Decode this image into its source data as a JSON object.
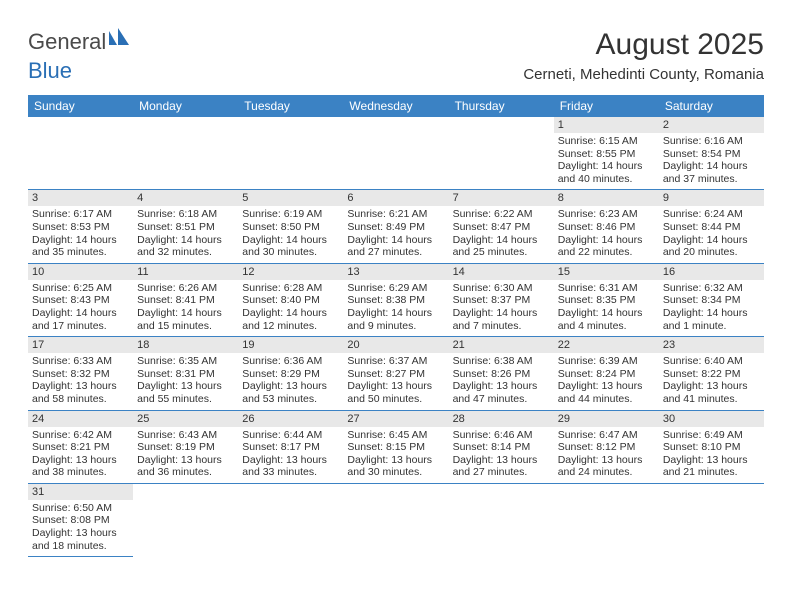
{
  "logo": {
    "text1": "General",
    "text2": "Blue"
  },
  "title": "August 2025",
  "location": "Cerneti, Mehedinti County, Romania",
  "colors": {
    "header_bg": "#3b82c4",
    "header_text": "#ffffff",
    "daynum_bg": "#e8e8e8",
    "row_border": "#3b82c4",
    "logo_blue": "#2a6fb5"
  },
  "weekdays": [
    "Sunday",
    "Monday",
    "Tuesday",
    "Wednesday",
    "Thursday",
    "Friday",
    "Saturday"
  ],
  "weeks": [
    [
      null,
      null,
      null,
      null,
      null,
      {
        "n": "1",
        "sr": "Sunrise: 6:15 AM",
        "ss": "Sunset: 8:55 PM",
        "dl": "Daylight: 14 hours and 40 minutes."
      },
      {
        "n": "2",
        "sr": "Sunrise: 6:16 AM",
        "ss": "Sunset: 8:54 PM",
        "dl": "Daylight: 14 hours and 37 minutes."
      }
    ],
    [
      {
        "n": "3",
        "sr": "Sunrise: 6:17 AM",
        "ss": "Sunset: 8:53 PM",
        "dl": "Daylight: 14 hours and 35 minutes."
      },
      {
        "n": "4",
        "sr": "Sunrise: 6:18 AM",
        "ss": "Sunset: 8:51 PM",
        "dl": "Daylight: 14 hours and 32 minutes."
      },
      {
        "n": "5",
        "sr": "Sunrise: 6:19 AM",
        "ss": "Sunset: 8:50 PM",
        "dl": "Daylight: 14 hours and 30 minutes."
      },
      {
        "n": "6",
        "sr": "Sunrise: 6:21 AM",
        "ss": "Sunset: 8:49 PM",
        "dl": "Daylight: 14 hours and 27 minutes."
      },
      {
        "n": "7",
        "sr": "Sunrise: 6:22 AM",
        "ss": "Sunset: 8:47 PM",
        "dl": "Daylight: 14 hours and 25 minutes."
      },
      {
        "n": "8",
        "sr": "Sunrise: 6:23 AM",
        "ss": "Sunset: 8:46 PM",
        "dl": "Daylight: 14 hours and 22 minutes."
      },
      {
        "n": "9",
        "sr": "Sunrise: 6:24 AM",
        "ss": "Sunset: 8:44 PM",
        "dl": "Daylight: 14 hours and 20 minutes."
      }
    ],
    [
      {
        "n": "10",
        "sr": "Sunrise: 6:25 AM",
        "ss": "Sunset: 8:43 PM",
        "dl": "Daylight: 14 hours and 17 minutes."
      },
      {
        "n": "11",
        "sr": "Sunrise: 6:26 AM",
        "ss": "Sunset: 8:41 PM",
        "dl": "Daylight: 14 hours and 15 minutes."
      },
      {
        "n": "12",
        "sr": "Sunrise: 6:28 AM",
        "ss": "Sunset: 8:40 PM",
        "dl": "Daylight: 14 hours and 12 minutes."
      },
      {
        "n": "13",
        "sr": "Sunrise: 6:29 AM",
        "ss": "Sunset: 8:38 PM",
        "dl": "Daylight: 14 hours and 9 minutes."
      },
      {
        "n": "14",
        "sr": "Sunrise: 6:30 AM",
        "ss": "Sunset: 8:37 PM",
        "dl": "Daylight: 14 hours and 7 minutes."
      },
      {
        "n": "15",
        "sr": "Sunrise: 6:31 AM",
        "ss": "Sunset: 8:35 PM",
        "dl": "Daylight: 14 hours and 4 minutes."
      },
      {
        "n": "16",
        "sr": "Sunrise: 6:32 AM",
        "ss": "Sunset: 8:34 PM",
        "dl": "Daylight: 14 hours and 1 minute."
      }
    ],
    [
      {
        "n": "17",
        "sr": "Sunrise: 6:33 AM",
        "ss": "Sunset: 8:32 PM",
        "dl": "Daylight: 13 hours and 58 minutes."
      },
      {
        "n": "18",
        "sr": "Sunrise: 6:35 AM",
        "ss": "Sunset: 8:31 PM",
        "dl": "Daylight: 13 hours and 55 minutes."
      },
      {
        "n": "19",
        "sr": "Sunrise: 6:36 AM",
        "ss": "Sunset: 8:29 PM",
        "dl": "Daylight: 13 hours and 53 minutes."
      },
      {
        "n": "20",
        "sr": "Sunrise: 6:37 AM",
        "ss": "Sunset: 8:27 PM",
        "dl": "Daylight: 13 hours and 50 minutes."
      },
      {
        "n": "21",
        "sr": "Sunrise: 6:38 AM",
        "ss": "Sunset: 8:26 PM",
        "dl": "Daylight: 13 hours and 47 minutes."
      },
      {
        "n": "22",
        "sr": "Sunrise: 6:39 AM",
        "ss": "Sunset: 8:24 PM",
        "dl": "Daylight: 13 hours and 44 minutes."
      },
      {
        "n": "23",
        "sr": "Sunrise: 6:40 AM",
        "ss": "Sunset: 8:22 PM",
        "dl": "Daylight: 13 hours and 41 minutes."
      }
    ],
    [
      {
        "n": "24",
        "sr": "Sunrise: 6:42 AM",
        "ss": "Sunset: 8:21 PM",
        "dl": "Daylight: 13 hours and 38 minutes."
      },
      {
        "n": "25",
        "sr": "Sunrise: 6:43 AM",
        "ss": "Sunset: 8:19 PM",
        "dl": "Daylight: 13 hours and 36 minutes."
      },
      {
        "n": "26",
        "sr": "Sunrise: 6:44 AM",
        "ss": "Sunset: 8:17 PM",
        "dl": "Daylight: 13 hours and 33 minutes."
      },
      {
        "n": "27",
        "sr": "Sunrise: 6:45 AM",
        "ss": "Sunset: 8:15 PM",
        "dl": "Daylight: 13 hours and 30 minutes."
      },
      {
        "n": "28",
        "sr": "Sunrise: 6:46 AM",
        "ss": "Sunset: 8:14 PM",
        "dl": "Daylight: 13 hours and 27 minutes."
      },
      {
        "n": "29",
        "sr": "Sunrise: 6:47 AM",
        "ss": "Sunset: 8:12 PM",
        "dl": "Daylight: 13 hours and 24 minutes."
      },
      {
        "n": "30",
        "sr": "Sunrise: 6:49 AM",
        "ss": "Sunset: 8:10 PM",
        "dl": "Daylight: 13 hours and 21 minutes."
      }
    ],
    [
      {
        "n": "31",
        "sr": "Sunrise: 6:50 AM",
        "ss": "Sunset: 8:08 PM",
        "dl": "Daylight: 13 hours and 18 minutes."
      },
      null,
      null,
      null,
      null,
      null,
      null
    ]
  ]
}
